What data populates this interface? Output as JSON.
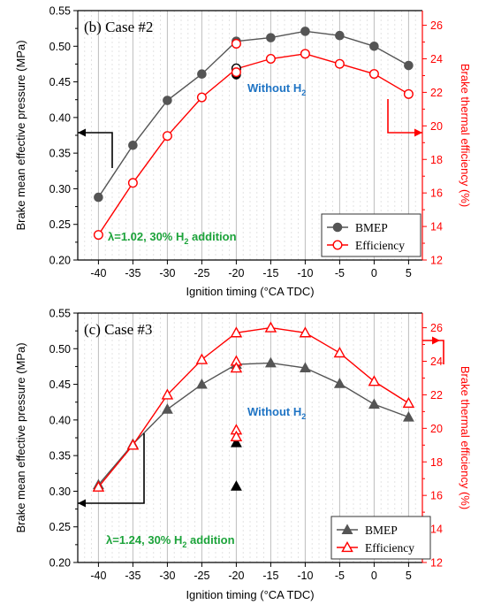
{
  "chart_data": [
    {
      "type": "line",
      "panel_label": "(b) Case #2",
      "xlabel": "Ignition timing (°CA TDC)",
      "ylabel_left": "Brake mean effective pressure (MPa)",
      "ylabel_right": "Brake thermal efficiency (%)",
      "x_ticks": [
        -40,
        -35,
        -30,
        -25,
        -20,
        -15,
        -10,
        -5,
        0,
        5
      ],
      "xlim": [
        -43,
        7
      ],
      "y_left_ticks": [
        "0.20",
        "0.25",
        "0.30",
        "0.35",
        "0.40",
        "0.45",
        "0.50",
        "0.55"
      ],
      "y_left_lim": [
        0.2,
        0.55
      ],
      "y_right_ticks": [
        "12",
        "14",
        "16",
        "18",
        "20",
        "22",
        "24",
        "26"
      ],
      "y_right_lim": [
        12,
        26.875
      ],
      "grid": "vertical dashed",
      "legend_position": "bottom-right",
      "series": [
        {
          "name": "BMEP",
          "axis": "left",
          "color": "#555555",
          "marker": "filled-circle",
          "x": [
            -40,
            -35,
            -30,
            -25,
            -20,
            -15,
            -10,
            -5,
            0,
            5
          ],
          "y": [
            0.288,
            0.361,
            0.424,
            0.461,
            0.507,
            0.512,
            0.521,
            0.515,
            0.5,
            0.473
          ]
        },
        {
          "name": "Efficiency",
          "axis": "right",
          "color": "#ff0000",
          "marker": "open-circle",
          "x": [
            -40,
            -35,
            -30,
            -25,
            -20,
            -15,
            -10,
            -5,
            0,
            5
          ],
          "y": [
            13.5,
            16.6,
            19.4,
            21.7,
            23.4,
            24.0,
            24.3,
            23.7,
            23.1,
            21.9
          ]
        }
      ],
      "without_h2_points": [
        {
          "axis": "left",
          "x": -20,
          "y": 0.469,
          "color": "#000000",
          "marker": "open-circle"
        },
        {
          "axis": "left",
          "x": -20,
          "y": 0.46,
          "color": "#000000",
          "marker": "filled-circle"
        },
        {
          "axis": "right",
          "x": -20,
          "y": 24.9,
          "color": "#ff0000",
          "marker": "open-circle"
        },
        {
          "axis": "right",
          "x": -20,
          "y": 23.2,
          "color": "#ff0000",
          "marker": "open-circle"
        }
      ],
      "annotations": {
        "without": {
          "text": "Without H",
          "sub": "2",
          "color": "#1f74c4"
        },
        "condition": {
          "text": "λ=1.02, 30% H",
          "sub": "2",
          "tail": " addition",
          "color": "#1ca33a"
        }
      },
      "arrows": {
        "left": "#000000",
        "right": "#ff0000"
      }
    },
    {
      "type": "line",
      "panel_label": "(c) Case #3",
      "xlabel": "Ignition timing (°CA TDC)",
      "ylabel_left": "Brake mean effective pressure (MPa)",
      "ylabel_right": "Brake thermal efficiency (%)",
      "x_ticks": [
        -40,
        -35,
        -30,
        -25,
        -20,
        -15,
        -10,
        -5,
        0,
        5
      ],
      "xlim": [
        -43,
        7
      ],
      "y_left_ticks": [
        "0.20",
        "0.25",
        "0.30",
        "0.35",
        "0.40",
        "0.45",
        "0.50",
        "0.55"
      ],
      "y_left_lim": [
        0.2,
        0.55
      ],
      "y_right_ticks": [
        "12",
        "14",
        "16",
        "18",
        "20",
        "22",
        "24",
        "26"
      ],
      "y_right_lim": [
        12,
        26.875
      ],
      "grid": "vertical dashed",
      "legend_position": "bottom-right",
      "series": [
        {
          "name": "BMEP",
          "axis": "left",
          "color": "#555555",
          "marker": "filled-triangle",
          "x": [
            -40,
            -35,
            -30,
            -25,
            -20,
            -15,
            -10,
            -5,
            0,
            5
          ],
          "y": [
            0.309,
            0.366,
            0.415,
            0.45,
            0.478,
            0.48,
            0.473,
            0.451,
            0.422,
            0.404
          ]
        },
        {
          "name": "Efficiency",
          "axis": "right",
          "color": "#ff0000",
          "marker": "open-triangle",
          "x": [
            -40,
            -35,
            -30,
            -25,
            -20,
            -15,
            -10,
            -5,
            0,
            5
          ],
          "y": [
            16.5,
            19.0,
            22.0,
            24.1,
            25.7,
            26.0,
            25.7,
            24.5,
            22.8,
            21.5
          ]
        }
      ],
      "without_h2_points": [
        {
          "axis": "left",
          "x": -20,
          "y": 0.368,
          "color": "#000000",
          "marker": "filled-triangle"
        },
        {
          "axis": "left",
          "x": -20,
          "y": 0.307,
          "color": "#000000",
          "marker": "filled-triangle"
        },
        {
          "axis": "right",
          "x": -20,
          "y": 24.0,
          "color": "#ff0000",
          "marker": "open-triangle"
        },
        {
          "axis": "right",
          "x": -20,
          "y": 23.6,
          "color": "#ff0000",
          "marker": "open-triangle"
        },
        {
          "axis": "right",
          "x": -20,
          "y": 19.9,
          "color": "#ff0000",
          "marker": "open-triangle"
        },
        {
          "axis": "right",
          "x": -20,
          "y": 19.5,
          "color": "#ff0000",
          "marker": "open-triangle"
        }
      ],
      "annotations": {
        "without": {
          "text": "Without H",
          "sub": "2",
          "color": "#1f74c4"
        },
        "condition": {
          "text": "λ=1.24, 30% H",
          "sub": "2",
          "tail": " addition",
          "color": "#1ca33a"
        }
      },
      "arrows": {
        "left": "#000000",
        "right": "#ff0000"
      }
    }
  ]
}
